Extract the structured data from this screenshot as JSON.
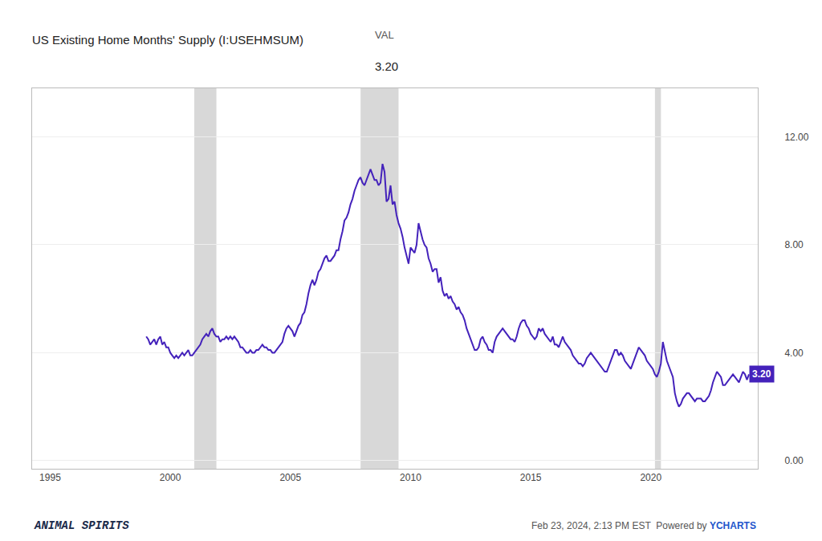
{
  "chart_data": {
    "type": "line",
    "title": "US Existing Home Months' Supply (I:USEHMSUM)",
    "header": {
      "label": "VAL",
      "value": "3.20"
    },
    "last_value_label": "3.20",
    "footer": {
      "left": "ANIMAL SPIRITS",
      "right": "Feb 23, 2024, 2:13 PM EST  Powered by ",
      "brand": "YCHARTS",
      "brand_color": "#2255cc"
    },
    "color": "#4422bb",
    "recession_bands": {
      "color": "#d8d8d8",
      "ranges": [
        [
          2001.0,
          2001.92
        ],
        [
          2007.92,
          2009.5
        ],
        [
          2020.17,
          2020.42
        ]
      ]
    },
    "xlim": [
      1994.25,
      2024.45
    ],
    "xticks": [
      1995,
      2000,
      2005,
      2010,
      2015,
      2020
    ],
    "ylim": [
      -0.3,
      13.8
    ],
    "yticks": [
      {
        "value": 0.0,
        "label": "0.00"
      },
      {
        "value": 4.0,
        "label": "4.00"
      },
      {
        "value": 8.0,
        "label": "8.00"
      },
      {
        "value": 12.0,
        "label": "12.00"
      }
    ],
    "grid": true,
    "x": [
      1999.0,
      1999.083,
      1999.167,
      1999.25,
      1999.333,
      1999.417,
      1999.5,
      1999.583,
      1999.667,
      1999.75,
      1999.833,
      1999.917,
      2000.0,
      2000.083,
      2000.167,
      2000.25,
      2000.333,
      2000.417,
      2000.5,
      2000.583,
      2000.667,
      2000.75,
      2000.833,
      2000.917,
      2001.0,
      2001.083,
      2001.167,
      2001.25,
      2001.333,
      2001.417,
      2001.5,
      2001.583,
      2001.667,
      2001.75,
      2001.833,
      2001.917,
      2002.0,
      2002.083,
      2002.167,
      2002.25,
      2002.333,
      2002.417,
      2002.5,
      2002.583,
      2002.667,
      2002.75,
      2002.833,
      2002.917,
      2003.0,
      2003.083,
      2003.167,
      2003.25,
      2003.333,
      2003.417,
      2003.5,
      2003.583,
      2003.667,
      2003.75,
      2003.833,
      2003.917,
      2004.0,
      2004.083,
      2004.167,
      2004.25,
      2004.333,
      2004.417,
      2004.5,
      2004.583,
      2004.667,
      2004.75,
      2004.833,
      2004.917,
      2005.0,
      2005.083,
      2005.167,
      2005.25,
      2005.333,
      2005.417,
      2005.5,
      2005.583,
      2005.667,
      2005.75,
      2005.833,
      2005.917,
      2006.0,
      2006.083,
      2006.167,
      2006.25,
      2006.333,
      2006.417,
      2006.5,
      2006.583,
      2006.667,
      2006.75,
      2006.833,
      2006.917,
      2007.0,
      2007.083,
      2007.167,
      2007.25,
      2007.333,
      2007.417,
      2007.5,
      2007.583,
      2007.667,
      2007.75,
      2007.833,
      2007.917,
      2008.0,
      2008.083,
      2008.167,
      2008.25,
      2008.333,
      2008.417,
      2008.5,
      2008.583,
      2008.667,
      2008.75,
      2008.833,
      2008.917,
      2009.0,
      2009.083,
      2009.167,
      2009.25,
      2009.333,
      2009.417,
      2009.5,
      2009.583,
      2009.667,
      2009.75,
      2009.833,
      2009.917,
      2010.0,
      2010.083,
      2010.167,
      2010.25,
      2010.333,
      2010.417,
      2010.5,
      2010.583,
      2010.667,
      2010.75,
      2010.833,
      2010.917,
      2011.0,
      2011.083,
      2011.167,
      2011.25,
      2011.333,
      2011.417,
      2011.5,
      2011.583,
      2011.667,
      2011.75,
      2011.833,
      2011.917,
      2012.0,
      2012.083,
      2012.167,
      2012.25,
      2012.333,
      2012.417,
      2012.5,
      2012.583,
      2012.667,
      2012.75,
      2012.833,
      2012.917,
      2013.0,
      2013.083,
      2013.167,
      2013.25,
      2013.333,
      2013.417,
      2013.5,
      2013.583,
      2013.667,
      2013.75,
      2013.833,
      2013.917,
      2014.0,
      2014.083,
      2014.167,
      2014.25,
      2014.333,
      2014.417,
      2014.5,
      2014.583,
      2014.667,
      2014.75,
      2014.833,
      2014.917,
      2015.0,
      2015.083,
      2015.167,
      2015.25,
      2015.333,
      2015.417,
      2015.5,
      2015.583,
      2015.667,
      2015.75,
      2015.833,
      2015.917,
      2016.0,
      2016.083,
      2016.167,
      2016.25,
      2016.333,
      2016.417,
      2016.5,
      2016.583,
      2016.667,
      2016.75,
      2016.833,
      2016.917,
      2017.0,
      2017.083,
      2017.167,
      2017.25,
      2017.333,
      2017.417,
      2017.5,
      2017.583,
      2017.667,
      2017.75,
      2017.833,
      2017.917,
      2018.0,
      2018.083,
      2018.167,
      2018.25,
      2018.333,
      2018.417,
      2018.5,
      2018.583,
      2018.667,
      2018.75,
      2018.833,
      2018.917,
      2019.0,
      2019.083,
      2019.167,
      2019.25,
      2019.333,
      2019.417,
      2019.5,
      2019.583,
      2019.667,
      2019.75,
      2019.833,
      2019.917,
      2020.0,
      2020.083,
      2020.167,
      2020.25,
      2020.333,
      2020.417,
      2020.5,
      2020.583,
      2020.667,
      2020.75,
      2020.833,
      2020.917,
      2021.0,
      2021.083,
      2021.167,
      2021.25,
      2021.333,
      2021.417,
      2021.5,
      2021.583,
      2021.667,
      2021.75,
      2021.833,
      2021.917,
      2022.0,
      2022.083,
      2022.167,
      2022.25,
      2022.333,
      2022.417,
      2022.5,
      2022.583,
      2022.667,
      2022.75,
      2022.833,
      2022.917,
      2023.0,
      2023.083,
      2023.167,
      2023.25,
      2023.333,
      2023.417,
      2023.5,
      2023.583,
      2023.667,
      2023.75,
      2023.833,
      2023.917,
      2024.0,
      2024.083
    ],
    "values": [
      4.6,
      4.5,
      4.3,
      4.4,
      4.5,
      4.3,
      4.5,
      4.6,
      4.3,
      4.4,
      4.2,
      4.2,
      4.0,
      3.9,
      3.8,
      3.9,
      3.8,
      3.9,
      4.0,
      3.9,
      4.0,
      4.1,
      3.9,
      3.9,
      4.0,
      4.1,
      4.2,
      4.3,
      4.5,
      4.6,
      4.7,
      4.6,
      4.8,
      4.9,
      4.7,
      4.6,
      4.6,
      4.4,
      4.5,
      4.5,
      4.6,
      4.5,
      4.6,
      4.5,
      4.6,
      4.5,
      4.4,
      4.2,
      4.2,
      4.1,
      4.0,
      4.0,
      4.1,
      4.0,
      4.0,
      4.1,
      4.1,
      4.2,
      4.3,
      4.2,
      4.2,
      4.1,
      4.1,
      4.0,
      4.0,
      4.1,
      4.2,
      4.3,
      4.4,
      4.7,
      4.9,
      5.0,
      4.9,
      4.8,
      4.6,
      4.8,
      5.0,
      5.1,
      5.4,
      5.5,
      5.8,
      6.2,
      6.5,
      6.7,
      6.5,
      6.7,
      7.0,
      7.1,
      7.3,
      7.5,
      7.6,
      7.4,
      7.4,
      7.5,
      7.6,
      7.8,
      7.8,
      8.2,
      8.5,
      8.9,
      9.0,
      9.2,
      9.5,
      9.7,
      10.0,
      10.2,
      10.4,
      10.5,
      10.3,
      10.2,
      10.4,
      10.6,
      10.8,
      10.6,
      10.4,
      10.4,
      10.2,
      10.3,
      11.0,
      10.7,
      9.6,
      9.7,
      10.2,
      9.5,
      9.6,
      9.1,
      8.8,
      8.6,
      8.3,
      7.9,
      7.6,
      7.3,
      7.9,
      7.8,
      7.7,
      8.0,
      8.8,
      8.5,
      8.2,
      8.0,
      7.9,
      7.5,
      7.3,
      7.0,
      7.1,
      7.1,
      6.6,
      6.8,
      6.3,
      6.1,
      6.2,
      6.0,
      6.1,
      5.9,
      5.8,
      5.6,
      5.7,
      5.5,
      5.4,
      5.2,
      4.9,
      4.7,
      4.5,
      4.3,
      4.1,
      4.1,
      4.2,
      4.5,
      4.6,
      4.4,
      4.3,
      4.1,
      4.1,
      4.0,
      4.4,
      4.6,
      4.7,
      4.8,
      4.9,
      4.8,
      4.7,
      4.6,
      4.5,
      4.5,
      4.4,
      4.6,
      4.9,
      5.1,
      5.2,
      5.2,
      5.0,
      4.9,
      4.7,
      4.6,
      4.5,
      4.6,
      4.9,
      4.8,
      4.9,
      4.7,
      4.6,
      4.5,
      4.4,
      4.6,
      4.3,
      4.3,
      4.2,
      4.4,
      4.6,
      4.4,
      4.3,
      4.2,
      4.1,
      3.9,
      3.8,
      3.7,
      3.6,
      3.6,
      3.5,
      3.6,
      3.8,
      3.9,
      4.0,
      3.9,
      3.8,
      3.7,
      3.6,
      3.5,
      3.4,
      3.3,
      3.3,
      3.5,
      3.7,
      3.9,
      4.1,
      4.1,
      3.9,
      4.0,
      3.9,
      3.7,
      3.6,
      3.5,
      3.4,
      3.6,
      3.8,
      4.0,
      4.2,
      4.1,
      4.0,
      3.9,
      3.7,
      3.6,
      3.5,
      3.4,
      3.2,
      3.1,
      3.3,
      3.6,
      4.4,
      4.0,
      3.7,
      3.5,
      3.3,
      3.1,
      2.5,
      2.2,
      2.0,
      2.1,
      2.3,
      2.4,
      2.5,
      2.5,
      2.4,
      2.3,
      2.2,
      2.3,
      2.3,
      2.3,
      2.2,
      2.2,
      2.3,
      2.4,
      2.6,
      2.9,
      3.1,
      3.3,
      3.2,
      3.1,
      2.8,
      2.8,
      2.9,
      3.0,
      3.1,
      3.2,
      3.1,
      3.0,
      2.9,
      3.1,
      3.3,
      3.2,
      3.0,
      3.2
    ]
  }
}
